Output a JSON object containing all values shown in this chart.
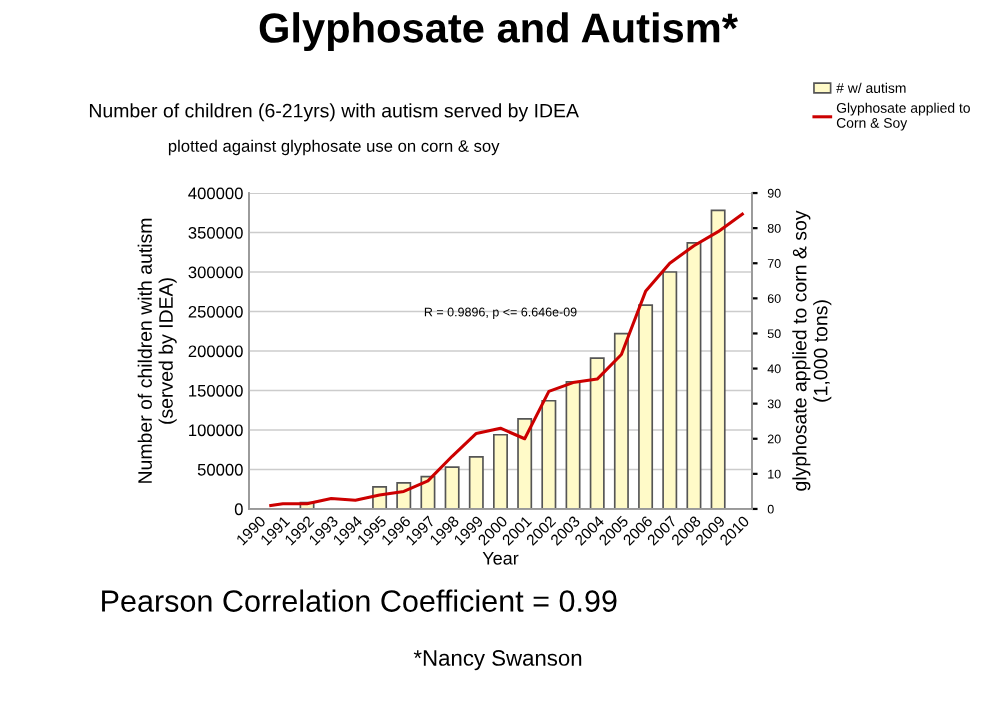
{
  "chart_data": {
    "type": "bar",
    "title": "Glyphosate and Autism*",
    "subtitle": "Number of children (6-21yrs) with autism served by IDEA",
    "xlabel": "Year",
    "ylabel": "Number of children with autism\n(served by IDEA)",
    "y2label": "glyphosate applied to corn & soy\n(1,000 tons)",
    "annotations": [
      "plotted against glyphosate use on corn & soy",
      "R = 0.9896, p <= 6.646e-09",
      "Pearson Correlation Coefficient = 0.99",
      "*Nancy Swanson"
    ],
    "series": [
      {
        "name": "# w/ autism",
        "color": "#fffac8",
        "x": [
          1992,
          1995,
          1996,
          1997,
          1998,
          1999,
          2000,
          2001,
          2002,
          2003,
          2004,
          2005,
          2006,
          2007,
          2008,
          2009
        ],
        "values": [
          8000,
          28000,
          33000,
          41000,
          53000,
          66000,
          94000,
          114000,
          137000,
          161000,
          191000,
          222000,
          258000,
          300000,
          337000,
          378000
        ]
      },
      {
        "name": "Glyphosate applied to\nCorn & Soy",
        "type": "line",
        "axis": "y2",
        "color": "#cc0000",
        "x": [
          1990.5,
          1991,
          1992,
          1993,
          1994,
          1995,
          1996,
          1997,
          1998,
          1999,
          2000,
          2001,
          2002,
          2003,
          2004,
          2005,
          2006,
          2007,
          2008,
          2009,
          2010
        ],
        "values": [
          1,
          1.5,
          1.5,
          3,
          2.5,
          4,
          5,
          8,
          15,
          21.5,
          23,
          20,
          33.5,
          36,
          37,
          44,
          62,
          70,
          75,
          79,
          84
        ]
      }
    ],
    "xlim": [
      1989.6,
      2010.4
    ],
    "xticks": [
      1990,
      1991,
      1992,
      1993,
      1994,
      1995,
      1996,
      1997,
      1998,
      1999,
      2000,
      2001,
      2002,
      2003,
      2004,
      2005,
      2006,
      2007,
      2008,
      2009,
      2010
    ],
    "ylim": [
      0,
      400000
    ],
    "yticks": [
      0,
      50000,
      100000,
      150000,
      200000,
      250000,
      300000,
      350000,
      400000
    ],
    "y2lim": [
      0,
      90
    ],
    "y2ticks": [
      0,
      10,
      20,
      30,
      40,
      50,
      60,
      70,
      80,
      90
    ],
    "grid": "y",
    "legend": "top right",
    "marker": "none",
    "line_style": "solid"
  }
}
